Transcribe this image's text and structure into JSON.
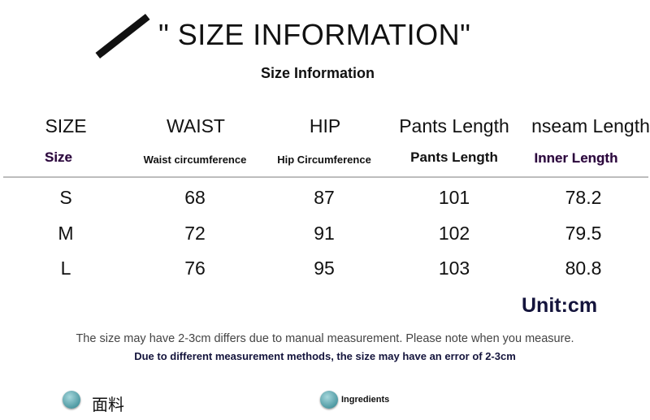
{
  "title": "\" SIZE INFORMATION\"",
  "subtitle": "Size Information",
  "table": {
    "headers": [
      "SIZE",
      "WAIST",
      "HIP",
      "Pants  Length",
      "nseam Length"
    ],
    "subheaders": [
      "Size",
      "Waist circumference",
      "Hip Circumference",
      "Pants Length",
      "Inner Length"
    ],
    "rows": [
      [
        "S",
        "68",
        "87",
        "101",
        "78.2"
      ],
      [
        "M",
        "72",
        "91",
        "102",
        "79.5"
      ],
      [
        "L",
        "76",
        "95",
        "103",
        "80.8"
      ]
    ]
  },
  "unit": "Unit:cm",
  "notes": {
    "line1": "The size may have 2-3cm differs due to manual measurement. Please note when you measure.",
    "line2": "Due to different measurement methods, the size may have an error of 2-3cm"
  },
  "sections": [
    {
      "label": "面料",
      "icon": "teal-dot-icon"
    },
    {
      "label": "Ingredients",
      "icon": "teal-dot-icon"
    }
  ],
  "colors": {
    "accent_navy": "#14143c",
    "dot_teal": "#4f9aa3"
  }
}
